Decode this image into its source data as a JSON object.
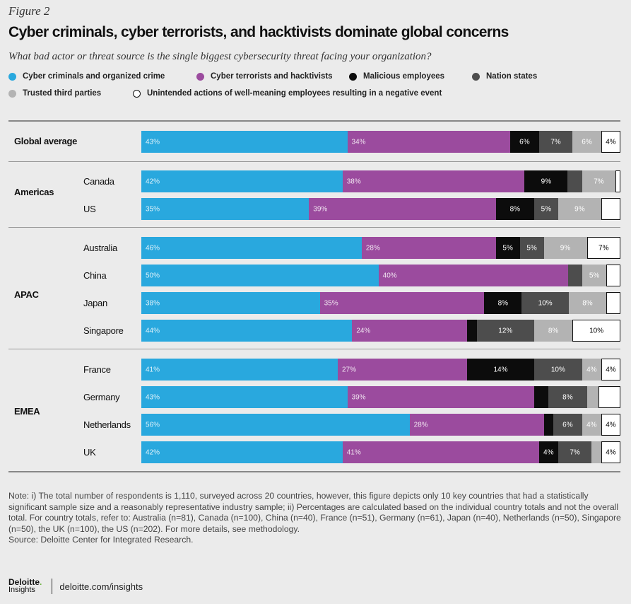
{
  "figure_label": "Figure 2",
  "chart_data": {
    "type": "bar",
    "orientation": "horizontal-stacked",
    "title": "Cyber criminals, cyber terrorists, and hacktivists dominate global concerns",
    "subtitle": "What bad actor or threat source is the single biggest cybersecurity threat facing your organization?",
    "legend": [
      {
        "name": "Cyber criminals and organized crime",
        "color": "#29a8de"
      },
      {
        "name": "Cyber terrorists and hacktivists",
        "color": "#9b4b9e"
      },
      {
        "name": "Malicious employees",
        "color": "#0c0c0c"
      },
      {
        "name": "Nation states",
        "color": "#4d4d4d"
      },
      {
        "name": "Trusted third parties",
        "color": "#b3b3b3"
      },
      {
        "name": "Unintended actions of well-meaning employees resulting in a negative event",
        "color": "#ffffff"
      }
    ],
    "groups": [
      {
        "region": "",
        "rows": [
          {
            "label": "Global average",
            "values": [
              43,
              34,
              6,
              7,
              6,
              4
            ],
            "labels": [
              "43%",
              "34%",
              "6%",
              "7%",
              "6%",
              "4%"
            ]
          }
        ]
      },
      {
        "region": "Americas",
        "rows": [
          {
            "label": "Canada",
            "values": [
              42,
              38,
              9,
              3,
              7,
              1
            ],
            "labels": [
              "42%",
              "38%",
              "9%",
              "",
              "7%",
              ""
            ]
          },
          {
            "label": "US",
            "values": [
              35,
              39,
              8,
              5,
              9,
              4
            ],
            "labels": [
              "35%",
              "39%",
              "8%",
              "5%",
              "9%",
              ""
            ]
          }
        ]
      },
      {
        "region": "APAC",
        "rows": [
          {
            "label": "Australia",
            "values": [
              46,
              28,
              5,
              5,
              9,
              7
            ],
            "labels": [
              "46%",
              "28%",
              "5%",
              "5%",
              "9%",
              "7%"
            ]
          },
          {
            "label": "China",
            "values": [
              50,
              40,
              0,
              3,
              5,
              3
            ],
            "labels": [
              "50%",
              "40%",
              "",
              "",
              "5%",
              ""
            ]
          },
          {
            "label": "Japan",
            "values": [
              38,
              35,
              8,
              10,
              8,
              3
            ],
            "labels": [
              "38%",
              "35%",
              "8%",
              "10%",
              "8%",
              ""
            ]
          },
          {
            "label": "Singapore",
            "values": [
              44,
              24,
              2,
              12,
              8,
              10
            ],
            "labels": [
              "44%",
              "24%",
              "",
              "12%",
              "8%",
              "10%"
            ]
          }
        ]
      },
      {
        "region": "EMEA",
        "rows": [
          {
            "label": "France",
            "values": [
              41,
              27,
              14,
              10,
              4,
              4
            ],
            "labels": [
              "41%",
              "27%",
              "14%",
              "10%",
              "4%",
              "4%"
            ]
          },
          {
            "label": "Germany",
            "values": [
              43,
              39,
              3,
              8,
              2.5,
              4.5
            ],
            "labels": [
              "43%",
              "39%",
              "",
              "8%",
              "",
              ""
            ]
          },
          {
            "label": "Netherlands",
            "values": [
              56,
              28,
              2,
              6,
              4,
              4
            ],
            "labels": [
              "56%",
              "28%",
              "",
              "6%",
              "4%",
              "4%"
            ]
          },
          {
            "label": "UK",
            "values": [
              42,
              41,
              4,
              7,
              2,
              4
            ],
            "labels": [
              "42%",
              "41%",
              "4%",
              "7%",
              "",
              "4%"
            ]
          }
        ]
      }
    ],
    "xlim": [
      0,
      100
    ],
    "grid": false
  },
  "note_text": "Note: i) The total number of respondents is 1,110, surveyed across 20 countries, however, this figure depicts only 10 key countries that had a statistically significant sample size and a reasonably representative industry sample; ii) Percentages are calculated based on the individual country totals and not the overall total. For country totals, refer to: Australia (n=81), Canada (n=100), China (n=40), France (n=51), Germany (n=61), Japan (n=40), Netherlands (n=50), Singapore (n=50), the UK (n=100), the US (n=202). For more details, see methodology.",
  "source_text": "Source: Deloitte Center for Integrated Research.",
  "footer": {
    "logo_main": "Deloitte",
    "logo_dot": ".",
    "logo_sub": "Insights",
    "url": "deloitte.com/insights"
  }
}
